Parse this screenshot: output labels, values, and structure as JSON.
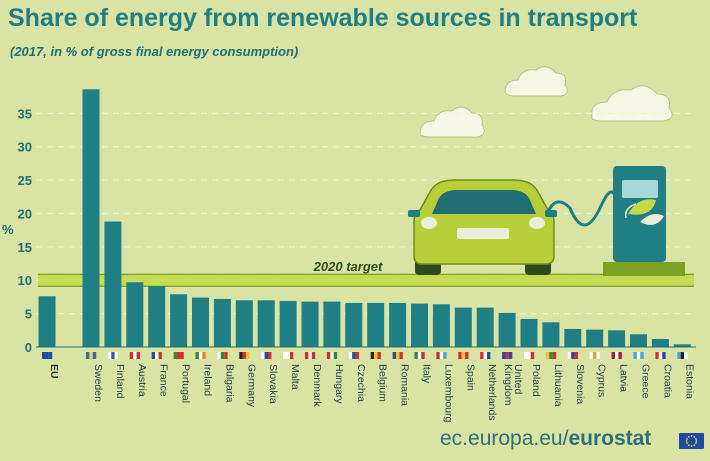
{
  "header": {
    "title": "Share of energy from renewable sources in transport",
    "subtitle": "(2017, in % of gross final energy consumption)"
  },
  "footer": {
    "domain": "ec.europa.eu/",
    "brand": "eurostat"
  },
  "colors": {
    "background": "#d8e3a4",
    "bar": "#1f7f85",
    "title": "#1f7f85",
    "target_band": "#c3d94a",
    "car_body": "#b8cf3a",
    "charger": "#1f7f85"
  },
  "icons": [
    "eu-flag-icon",
    "car-icon",
    "charging-station-icon",
    "leaf-icon",
    "cloud-icon",
    "country-flag-icon"
  ],
  "chart_data": {
    "type": "bar",
    "title": "Share of energy from renewable sources in transport",
    "subtitle": "(2017, in % of gross final energy consumption)",
    "ylabel": "%",
    "xlabel": "",
    "ylim": [
      0,
      38.5
    ],
    "yticks": [
      0,
      5,
      10,
      15,
      20,
      25,
      30,
      35
    ],
    "grid": "horizontal dashed",
    "categories": [
      "EU",
      "Sweden",
      "Finland",
      "Austria",
      "France",
      "Portugal",
      "Ireland",
      "Bulgaria",
      "Germany",
      "Slovakia",
      "Malta",
      "Denmark",
      "Hungary",
      "Czechia",
      "Belgium",
      "Romania",
      "Italy",
      "Luxembourg",
      "Spain",
      "Netherlands",
      "United Kingdom",
      "Poland",
      "Lithuania",
      "Slovenia",
      "Cyprus",
      "Latvia",
      "Greece",
      "Croatia",
      "Estonia"
    ],
    "values": [
      7.6,
      38.6,
      18.8,
      9.7,
      9.1,
      7.9,
      7.4,
      7.2,
      7.0,
      7.0,
      6.9,
      6.8,
      6.8,
      6.6,
      6.6,
      6.6,
      6.5,
      6.4,
      5.9,
      5.9,
      5.1,
      4.2,
      3.7,
      2.7,
      2.6,
      2.5,
      1.9,
      1.2,
      0.4
    ],
    "target": {
      "label": "2020 target",
      "value": 10
    }
  }
}
